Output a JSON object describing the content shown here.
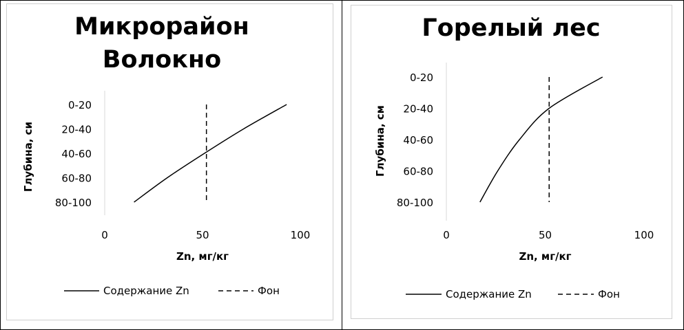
{
  "chart_data": [
    {
      "type": "line",
      "title_lines": [
        "Микрорайон",
        "Волокно"
      ],
      "xlabel": "Zn, мг/кг",
      "ylabel": "Глубина, си",
      "xlim": [
        0,
        100
      ],
      "x_ticks": [
        "0",
        "50",
        "100"
      ],
      "categories": [
        "0-20",
        "20-40",
        "40-60",
        "60-80",
        "80-100"
      ],
      "series": [
        {
          "name": "Содержание Zn",
          "style": "solid",
          "color": "#000000",
          "x": [
            93,
            71,
            51,
            32,
            15
          ],
          "y": [
            "0-20",
            "20-40",
            "40-60",
            "60-80",
            "80-100"
          ]
        },
        {
          "name": "Фон",
          "style": "dashed",
          "color": "#000000",
          "x": [
            52,
            52
          ],
          "y": [
            "0-20",
            "80-100"
          ]
        }
      ],
      "legend": "bottom"
    },
    {
      "type": "line",
      "title_lines": [
        "Горелый лес"
      ],
      "xlabel": "Zn, мг/кг",
      "ylabel": "Глубина, см",
      "xlim": [
        0,
        100
      ],
      "x_ticks": [
        "0",
        "50",
        "100"
      ],
      "categories": [
        "0-20",
        "20-40",
        "40-60",
        "60-80",
        "80-100"
      ],
      "series": [
        {
          "name": "Содержание Zn",
          "style": "solid",
          "color": "#000000",
          "x": [
            79,
            52,
            37,
            26,
            17
          ],
          "y": [
            "0-20",
            "20-40",
            "40-60",
            "60-80",
            "80-100"
          ]
        },
        {
          "name": "Фон",
          "style": "dashed",
          "color": "#000000",
          "x": [
            52,
            52
          ],
          "y": [
            "0-20",
            "80-100"
          ]
        }
      ],
      "legend": "bottom"
    }
  ]
}
